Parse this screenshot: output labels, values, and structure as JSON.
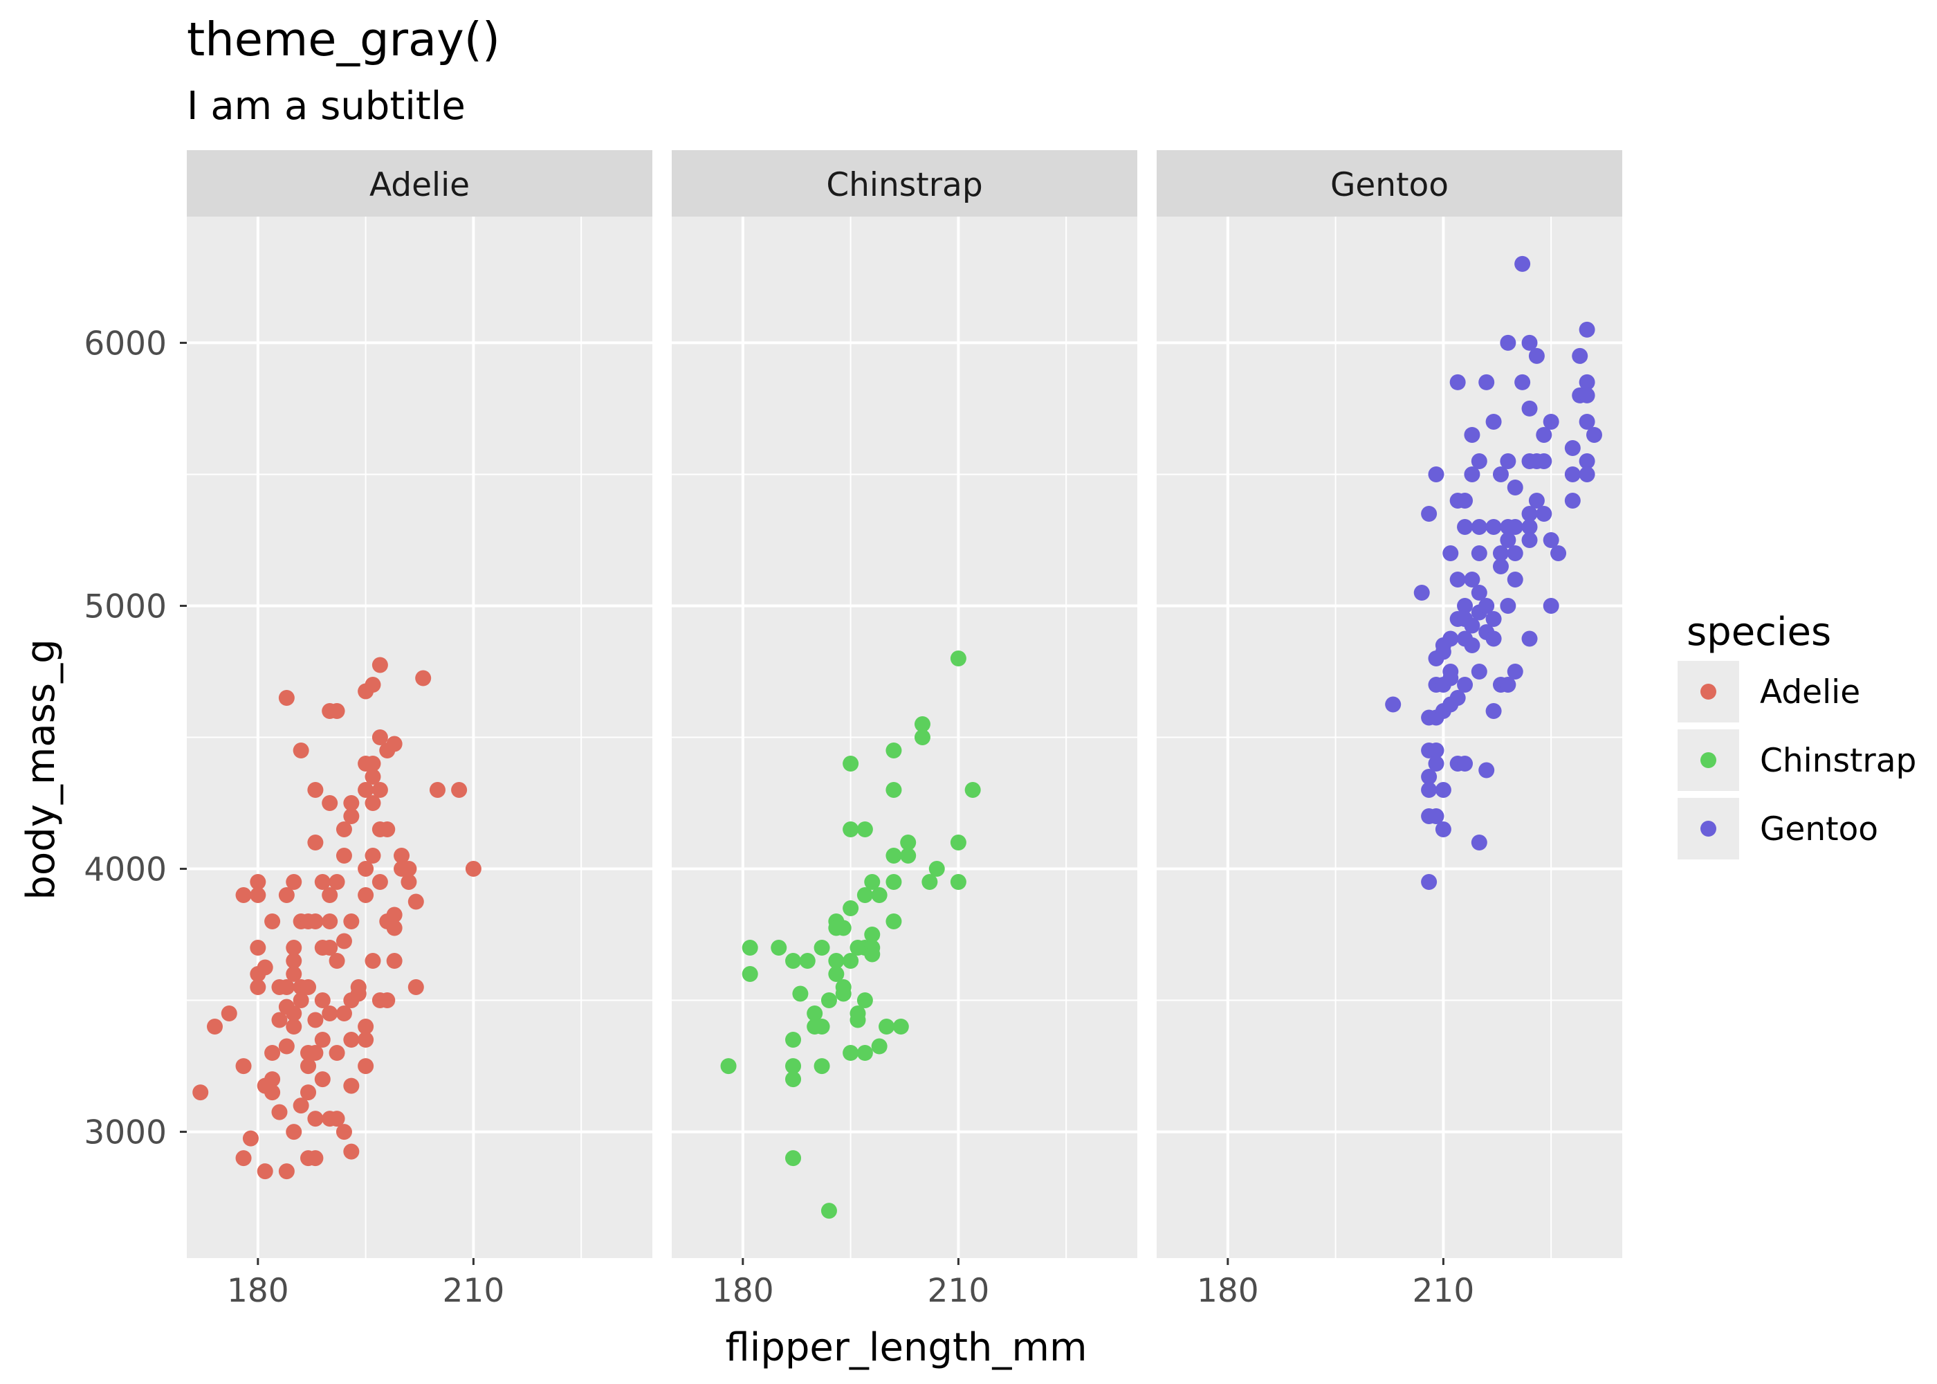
{
  "chart_data": {
    "type": "scatter",
    "title": "theme_gray()",
    "subtitle": "I am a subtitle",
    "xlabel": "flipper_length_mm",
    "ylabel": "body_mass_g",
    "xlim": [
      170.1,
      234.9
    ],
    "ylim": [
      2520,
      6480
    ],
    "x_ticks": [
      180,
      210
    ],
    "x_tick_labels": [
      "180",
      "210"
    ],
    "y_ticks": [
      3000,
      4000,
      5000,
      6000
    ],
    "y_tick_labels": [
      "3000",
      "4000",
      "5000",
      "6000"
    ],
    "x_minor_ticks": [
      195,
      225
    ],
    "y_minor_ticks": [
      3500,
      4500,
      5500
    ],
    "grid": true,
    "facet_var": "species",
    "panel_background": "#ebebeb",
    "strip_background": "#d9d9d9",
    "grid_color": "#ffffff",
    "legend": {
      "title": "species",
      "position": "right",
      "entries": [
        "Adelie",
        "Chinstrap",
        "Gentoo"
      ]
    },
    "series": [
      {
        "name": "Adelie",
        "color": "#df6a5b",
        "points": [
          [
            172,
            3150
          ],
          [
            174,
            3400
          ],
          [
            176,
            3450
          ],
          [
            178,
            3250
          ],
          [
            178,
            3900
          ],
          [
            178,
            2900
          ],
          [
            179,
            2975
          ],
          [
            180,
            3950
          ],
          [
            180,
            3900
          ],
          [
            180,
            3700
          ],
          [
            180,
            3600
          ],
          [
            180,
            3550
          ],
          [
            181,
            3625
          ],
          [
            181,
            3175
          ],
          [
            181,
            2850
          ],
          [
            182,
            3800
          ],
          [
            182,
            3300
          ],
          [
            182,
            3200
          ],
          [
            182,
            3150
          ],
          [
            183,
            3550
          ],
          [
            183,
            3425
          ],
          [
            183,
            3075
          ],
          [
            184,
            4650
          ],
          [
            184,
            3900
          ],
          [
            184,
            3550
          ],
          [
            184,
            3475
          ],
          [
            184,
            3325
          ],
          [
            184,
            2850
          ],
          [
            185,
            3950
          ],
          [
            185,
            3700
          ],
          [
            185,
            3650
          ],
          [
            185,
            3600
          ],
          [
            185,
            3450
          ],
          [
            185,
            3400
          ],
          [
            185,
            3000
          ],
          [
            186,
            4450
          ],
          [
            186,
            3800
          ],
          [
            186,
            3550
          ],
          [
            186,
            3500
          ],
          [
            186,
            3100
          ],
          [
            187,
            3800
          ],
          [
            187,
            3550
          ],
          [
            187,
            3300
          ],
          [
            187,
            3250
          ],
          [
            187,
            3150
          ],
          [
            187,
            2900
          ],
          [
            188,
            4300
          ],
          [
            188,
            4100
          ],
          [
            188,
            3800
          ],
          [
            188,
            3425
          ],
          [
            188,
            3300
          ],
          [
            188,
            2900
          ],
          [
            188,
            3050
          ],
          [
            189,
            3950
          ],
          [
            189,
            3700
          ],
          [
            189,
            3500
          ],
          [
            189,
            3350
          ],
          [
            189,
            3200
          ],
          [
            190,
            4600
          ],
          [
            190,
            4250
          ],
          [
            190,
            3900
          ],
          [
            190,
            3800
          ],
          [
            190,
            3700
          ],
          [
            190,
            3450
          ],
          [
            190,
            3050
          ],
          [
            191,
            4600
          ],
          [
            191,
            3950
          ],
          [
            191,
            3650
          ],
          [
            191,
            3300
          ],
          [
            191,
            3050
          ],
          [
            192,
            4150
          ],
          [
            192,
            4050
          ],
          [
            192,
            3725
          ],
          [
            192,
            3450
          ],
          [
            192,
            3000
          ],
          [
            193,
            4250
          ],
          [
            193,
            4200
          ],
          [
            193,
            3800
          ],
          [
            193,
            3500
          ],
          [
            193,
            3350
          ],
          [
            193,
            3175
          ],
          [
            193,
            2925
          ],
          [
            194,
            3525
          ],
          [
            194,
            3550
          ],
          [
            195,
            4675
          ],
          [
            195,
            4400
          ],
          [
            195,
            4300
          ],
          [
            195,
            4000
          ],
          [
            195,
            3900
          ],
          [
            195,
            3400
          ],
          [
            195,
            3350
          ],
          [
            195,
            3250
          ],
          [
            196,
            4700
          ],
          [
            196,
            4400
          ],
          [
            196,
            4350
          ],
          [
            196,
            4250
          ],
          [
            196,
            4050
          ],
          [
            196,
            3650
          ],
          [
            197,
            4775
          ],
          [
            197,
            4500
          ],
          [
            197,
            4300
          ],
          [
            197,
            4150
          ],
          [
            197,
            3950
          ],
          [
            197,
            3500
          ],
          [
            198,
            4450
          ],
          [
            198,
            4150
          ],
          [
            198,
            3800
          ],
          [
            198,
            3500
          ],
          [
            199,
            4475
          ],
          [
            199,
            3825
          ],
          [
            199,
            3775
          ],
          [
            199,
            3650
          ],
          [
            200,
            4050
          ],
          [
            200,
            4000
          ],
          [
            201,
            4000
          ],
          [
            201,
            3950
          ],
          [
            202,
            3875
          ],
          [
            202,
            3550
          ],
          [
            203,
            4725
          ],
          [
            205,
            4300
          ],
          [
            208,
            4300
          ],
          [
            210,
            4000
          ]
        ]
      },
      {
        "name": "Chinstrap",
        "color": "#5cd05c",
        "points": [
          [
            178,
            3250
          ],
          [
            181,
            3700
          ],
          [
            181,
            3600
          ],
          [
            185,
            3700
          ],
          [
            187,
            3650
          ],
          [
            187,
            3350
          ],
          [
            187,
            3250
          ],
          [
            187,
            3200
          ],
          [
            187,
            2900
          ],
          [
            188,
            3525
          ],
          [
            189,
            3650
          ],
          [
            190,
            3450
          ],
          [
            190,
            3400
          ],
          [
            191,
            3700
          ],
          [
            191,
            3400
          ],
          [
            191,
            3250
          ],
          [
            192,
            3500
          ],
          [
            192,
            2700
          ],
          [
            193,
            3800
          ],
          [
            193,
            3775
          ],
          [
            193,
            3650
          ],
          [
            193,
            3600
          ],
          [
            194,
            3775
          ],
          [
            194,
            3550
          ],
          [
            194,
            3525
          ],
          [
            195,
            4400
          ],
          [
            195,
            4150
          ],
          [
            195,
            3850
          ],
          [
            195,
            3650
          ],
          [
            195,
            3300
          ],
          [
            196,
            3700
          ],
          [
            196,
            3450
          ],
          [
            196,
            3425
          ],
          [
            197,
            4150
          ],
          [
            197,
            3900
          ],
          [
            197,
            3700
          ],
          [
            197,
            3500
          ],
          [
            197,
            3300
          ],
          [
            198,
            3750
          ],
          [
            198,
            3700
          ],
          [
            198,
            3675
          ],
          [
            198,
            3950
          ],
          [
            199,
            3900
          ],
          [
            199,
            3325
          ],
          [
            200,
            3400
          ],
          [
            201,
            4450
          ],
          [
            201,
            4300
          ],
          [
            201,
            4050
          ],
          [
            201,
            3950
          ],
          [
            201,
            3800
          ],
          [
            202,
            3400
          ],
          [
            203,
            4100
          ],
          [
            203,
            4050
          ],
          [
            205,
            4550
          ],
          [
            205,
            4500
          ],
          [
            206,
            3950
          ],
          [
            207,
            4000
          ],
          [
            210,
            4800
          ],
          [
            210,
            4100
          ],
          [
            210,
            3950
          ],
          [
            212,
            4300
          ]
        ]
      },
      {
        "name": "Gentoo",
        "color": "#6a5fd9",
        "points": [
          [
            203,
            4625
          ],
          [
            207,
            5050
          ],
          [
            208,
            5350
          ],
          [
            208,
            4575
          ],
          [
            208,
            4450
          ],
          [
            208,
            4350
          ],
          [
            208,
            4300
          ],
          [
            208,
            4200
          ],
          [
            208,
            3950
          ],
          [
            209,
            5500
          ],
          [
            209,
            4800
          ],
          [
            209,
            4700
          ],
          [
            209,
            4575
          ],
          [
            209,
            4450
          ],
          [
            209,
            4400
          ],
          [
            209,
            4200
          ],
          [
            210,
            4850
          ],
          [
            210,
            4825
          ],
          [
            210,
            4700
          ],
          [
            210,
            4600
          ],
          [
            210,
            4300
          ],
          [
            210,
            4150
          ],
          [
            211,
            5200
          ],
          [
            211,
            4875
          ],
          [
            211,
            4725
          ],
          [
            211,
            4750
          ],
          [
            211,
            4625
          ],
          [
            212,
            5850
          ],
          [
            212,
            5400
          ],
          [
            212,
            5100
          ],
          [
            212,
            4950
          ],
          [
            212,
            4400
          ],
          [
            212,
            4650
          ],
          [
            213,
            5400
          ],
          [
            213,
            5300
          ],
          [
            213,
            5000
          ],
          [
            213,
            4950
          ],
          [
            213,
            4875
          ],
          [
            213,
            4700
          ],
          [
            213,
            4400
          ],
          [
            214,
            5650
          ],
          [
            214,
            5500
          ],
          [
            214,
            5100
          ],
          [
            214,
            4925
          ],
          [
            214,
            4850
          ],
          [
            215,
            5550
          ],
          [
            215,
            5300
          ],
          [
            215,
            5200
          ],
          [
            215,
            5050
          ],
          [
            215,
            4975
          ],
          [
            215,
            4750
          ],
          [
            215,
            4100
          ],
          [
            216,
            5850
          ],
          [
            216,
            5000
          ],
          [
            216,
            4900
          ],
          [
            216,
            4375
          ],
          [
            217,
            5700
          ],
          [
            217,
            5300
          ],
          [
            217,
            4950
          ],
          [
            217,
            4875
          ],
          [
            217,
            4600
          ],
          [
            218,
            5500
          ],
          [
            218,
            5200
          ],
          [
            218,
            5150
          ],
          [
            218,
            4700
          ],
          [
            219,
            6000
          ],
          [
            219,
            5550
          ],
          [
            219,
            5300
          ],
          [
            219,
            5250
          ],
          [
            219,
            5000
          ],
          [
            219,
            4700
          ],
          [
            220,
            5450
          ],
          [
            220,
            5300
          ],
          [
            220,
            5200
          ],
          [
            220,
            5100
          ],
          [
            220,
            4750
          ],
          [
            221,
            6300
          ],
          [
            221,
            5850
          ],
          [
            222,
            6000
          ],
          [
            222,
            5750
          ],
          [
            222,
            5550
          ],
          [
            222,
            5350
          ],
          [
            222,
            5300
          ],
          [
            222,
            5250
          ],
          [
            222,
            4875
          ],
          [
            223,
            5950
          ],
          [
            223,
            5550
          ],
          [
            223,
            5400
          ],
          [
            224,
            5650
          ],
          [
            224,
            5550
          ],
          [
            224,
            5350
          ],
          [
            225,
            5700
          ],
          [
            225,
            5250
          ],
          [
            225,
            5000
          ],
          [
            226,
            5200
          ],
          [
            228,
            5600
          ],
          [
            228,
            5500
          ],
          [
            228,
            5400
          ],
          [
            229,
            5950
          ],
          [
            229,
            5800
          ],
          [
            230,
            6050
          ],
          [
            230,
            5850
          ],
          [
            230,
            5800
          ],
          [
            230,
            5700
          ],
          [
            230,
            5550
          ],
          [
            230,
            5500
          ],
          [
            231,
            5650
          ]
        ]
      }
    ]
  }
}
